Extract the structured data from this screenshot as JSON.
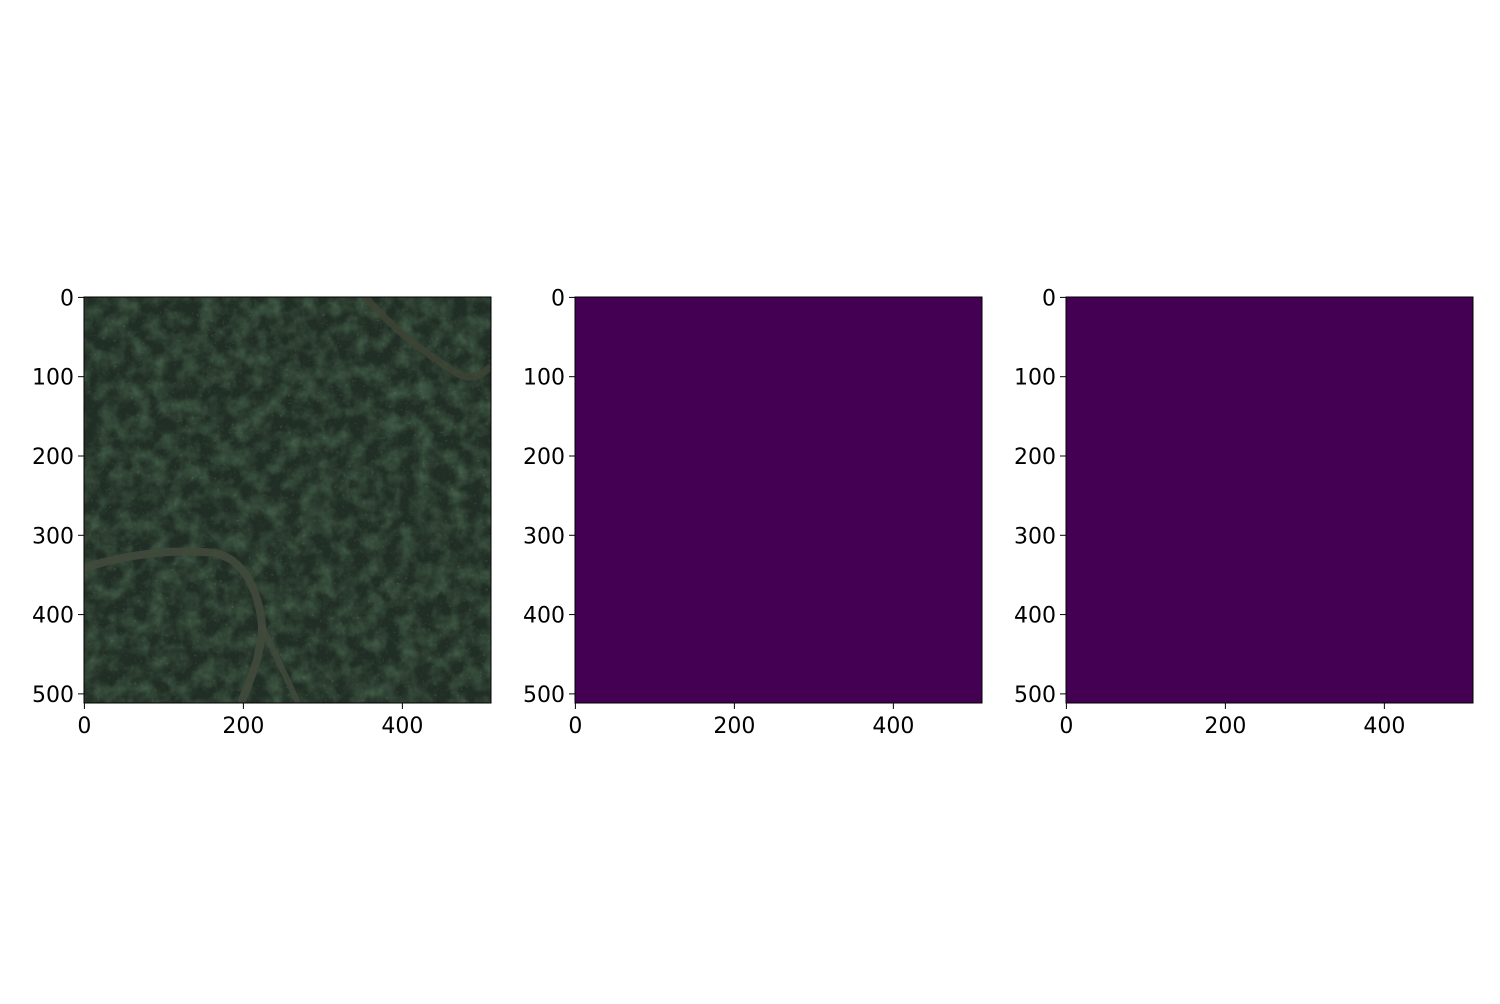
{
  "figure": {
    "panels": [
      {
        "kind": "satellite-image",
        "x_ticks": [
          "0",
          "200",
          "400"
        ],
        "y_ticks": [
          "0",
          "100",
          "200",
          "300",
          "400",
          "500"
        ],
        "content": "aerial view of dark green forest/scrubland with two light brown dirt tracks"
      },
      {
        "kind": "mask",
        "fill_color": "#440154",
        "x_ticks": [
          "0",
          "200",
          "400"
        ],
        "y_ticks": [
          "0",
          "100",
          "200",
          "300",
          "400",
          "500"
        ]
      },
      {
        "kind": "mask",
        "fill_color": "#440154",
        "x_ticks": [
          "0",
          "200",
          "400"
        ],
        "y_ticks": [
          "0",
          "100",
          "200",
          "300",
          "400",
          "500"
        ]
      }
    ],
    "image_size": [
      512,
      512
    ]
  }
}
